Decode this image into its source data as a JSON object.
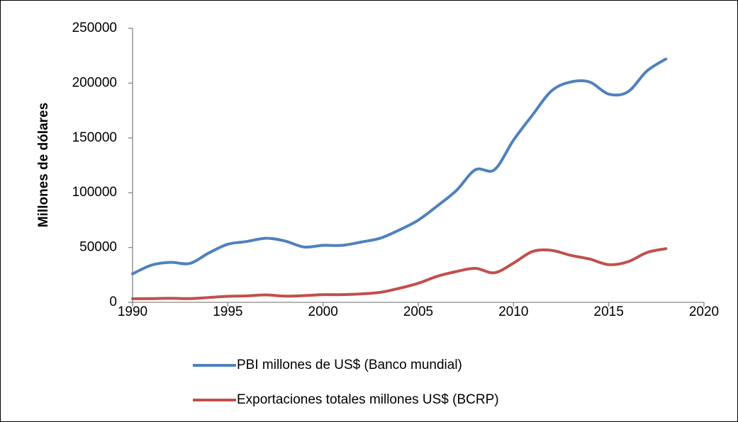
{
  "chart_data": {
    "type": "line",
    "y_label": "Millones de dólares",
    "x": [
      1990,
      1991,
      1992,
      1993,
      1994,
      1995,
      1996,
      1997,
      1998,
      1999,
      2000,
      2001,
      2002,
      2003,
      2004,
      2005,
      2006,
      2007,
      2008,
      2009,
      2010,
      2011,
      2012,
      2013,
      2014,
      2015,
      2016,
      2017,
      2018
    ],
    "series": [
      {
        "name": "PBI millones de US$  (Banco mundial)",
        "color": "#4f81bd",
        "values": [
          26000,
          34000,
          36500,
          35500,
          45000,
          53000,
          55500,
          58500,
          56000,
          50500,
          52000,
          52000,
          55000,
          58500,
          66000,
          75000,
          88000,
          102000,
          121000,
          121000,
          148000,
          171000,
          193000,
          201000,
          201000,
          190000,
          192000,
          211000,
          222000
        ]
      },
      {
        "name": "Exportaciones totales millones US$ (BCRP)",
        "color": "#c0504d",
        "values": [
          3300,
          3400,
          3700,
          3400,
          4400,
          5500,
          5900,
          6800,
          5700,
          6100,
          7000,
          7000,
          7700,
          9100,
          12800,
          17400,
          23800,
          28100,
          31000,
          27000,
          35800,
          46400,
          47400,
          42900,
          39500,
          34400,
          37000,
          45400,
          49000
        ]
      }
    ],
    "xlim": [
      1990,
      2020
    ],
    "xticks": [
      1990,
      1995,
      2000,
      2005,
      2010,
      2015,
      2020
    ],
    "ylim": [
      0,
      250000
    ],
    "yticks": [
      0,
      50000,
      100000,
      150000,
      200000,
      250000
    ],
    "grid": false,
    "legend": "bottom"
  }
}
